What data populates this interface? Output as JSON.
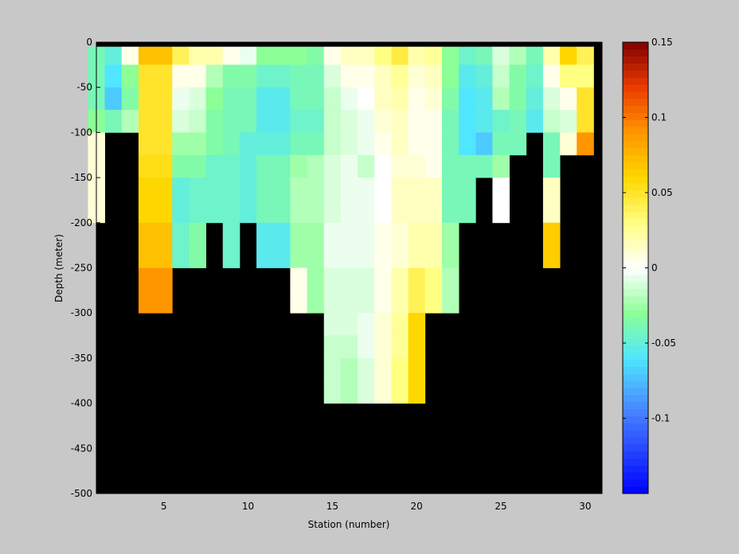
{
  "figure": {
    "background": "#c8c8c8"
  },
  "chart_data": {
    "type": "heatmap",
    "title": "",
    "xlabel": "Station (number)",
    "ylabel": "Depth (meter)",
    "xlim": [
      1,
      31
    ],
    "ylim": [
      -500,
      0
    ],
    "x_ticks": [
      5,
      10,
      15,
      20,
      25,
      30
    ],
    "x_tick_labels": [
      "5",
      "10",
      "15",
      "20",
      "25",
      "30"
    ],
    "y_ticks": [
      0,
      -50,
      -100,
      -150,
      -200,
      -250,
      -300,
      -350,
      -400,
      -450,
      -500
    ],
    "y_tick_labels": [
      "0",
      "-50",
      "-100",
      "-150",
      "-200",
      "-250",
      "-300",
      "-350",
      "-400",
      "-450",
      "-500"
    ],
    "colorbar": {
      "colormap": "jet-with-white-center",
      "clim": [
        -0.15,
        0.15
      ],
      "ticks": [
        0.15,
        0.1,
        0.05,
        0,
        -0.05,
        -0.1
      ],
      "tick_labels": [
        "0.15",
        "0.1",
        "0.05",
        "0",
        "-0.05",
        "-0.1"
      ]
    },
    "missing_color": "#000000",
    "stations": [
      1,
      2,
      3,
      4,
      5,
      6,
      7,
      8,
      9,
      10,
      11,
      12,
      13,
      14,
      15,
      16,
      17,
      18,
      19,
      20,
      21,
      22,
      23,
      24,
      25,
      26,
      27,
      28,
      29,
      30
    ],
    "depth_bins_top": [
      -5,
      -25,
      -50,
      -75,
      -100,
      -125,
      -150,
      -175,
      -200,
      -225,
      -250,
      -275,
      -300,
      -325,
      -350,
      -375
    ],
    "depth_bins_bottom": [
      -25,
      -50,
      -75,
      -100,
      -125,
      -150,
      -175,
      -200,
      -225,
      -250,
      -275,
      -300,
      -325,
      -350,
      -375,
      -400
    ],
    "values": [
      [
        -0.04,
        -0.05,
        0.005,
        0.07,
        0.07,
        0.04,
        0.02,
        0.02,
        0.005,
        -0.005,
        -0.03,
        -0.03,
        -0.03,
        -0.035,
        0.005,
        0.015,
        0.015,
        0.03,
        0.045,
        0.02,
        0.025,
        -0.03,
        -0.045,
        -0.04,
        -0.01,
        -0.02,
        -0.04,
        0.02,
        0.06,
        0.04
      ],
      [
        -0.04,
        -0.06,
        -0.03,
        0.05,
        0.05,
        0.005,
        0.005,
        -0.02,
        -0.035,
        -0.035,
        -0.045,
        -0.045,
        -0.04,
        -0.04,
        -0.01,
        0.005,
        0.005,
        0.015,
        0.025,
        0.01,
        0.015,
        -0.03,
        -0.055,
        -0.05,
        -0.015,
        -0.035,
        -0.045,
        0.005,
        0.03,
        0.03
      ],
      [
        -0.04,
        -0.07,
        -0.035,
        0.05,
        0.05,
        -0.005,
        -0.01,
        -0.03,
        -0.04,
        -0.04,
        -0.055,
        -0.055,
        -0.04,
        -0.04,
        -0.015,
        -0.005,
        0.0,
        0.015,
        0.02,
        0.005,
        0.01,
        -0.035,
        -0.06,
        -0.055,
        -0.02,
        -0.035,
        -0.05,
        -0.01,
        0.005,
        0.05
      ],
      [
        -0.03,
        -0.04,
        -0.02,
        0.05,
        0.05,
        -0.01,
        -0.015,
        -0.035,
        -0.04,
        -0.04,
        -0.055,
        -0.055,
        -0.045,
        -0.045,
        -0.015,
        -0.01,
        -0.005,
        0.01,
        0.015,
        0.005,
        0.005,
        -0.04,
        -0.06,
        -0.055,
        -0.045,
        -0.04,
        -0.055,
        -0.015,
        -0.01,
        0.05
      ],
      [
        0.01,
        null,
        null,
        0.05,
        0.05,
        -0.025,
        -0.025,
        -0.035,
        -0.04,
        -0.05,
        -0.05,
        -0.05,
        -0.04,
        -0.04,
        -0.015,
        -0.01,
        -0.005,
        0.005,
        0.015,
        0.005,
        0.005,
        -0.04,
        -0.06,
        -0.07,
        -0.04,
        -0.04,
        null,
        -0.04,
        0.01,
        0.09
      ],
      [
        0.01,
        null,
        null,
        0.055,
        0.055,
        -0.035,
        -0.035,
        -0.045,
        -0.045,
        -0.05,
        -0.04,
        -0.04,
        -0.025,
        -0.02,
        -0.01,
        -0.005,
        -0.015,
        0.0,
        0.01,
        0.01,
        0.005,
        -0.04,
        -0.04,
        -0.04,
        -0.025,
        null,
        null,
        -0.04,
        null,
        null
      ],
      [
        0.01,
        null,
        null,
        0.06,
        0.06,
        -0.05,
        -0.045,
        -0.045,
        -0.045,
        -0.05,
        -0.04,
        -0.04,
        -0.02,
        -0.02,
        -0.01,
        -0.005,
        -0.005,
        0.0,
        0.015,
        0.015,
        0.015,
        -0.04,
        -0.04,
        null,
        0.0,
        null,
        null,
        0.015,
        null,
        null
      ],
      [
        0.01,
        null,
        null,
        0.06,
        0.06,
        -0.05,
        -0.045,
        -0.045,
        -0.045,
        -0.05,
        -0.04,
        -0.04,
        -0.02,
        -0.02,
        -0.01,
        -0.005,
        -0.005,
        0.0,
        0.015,
        0.015,
        0.015,
        -0.04,
        -0.04,
        null,
        0.0,
        null,
        null,
        0.015,
        null,
        null
      ],
      [
        null,
        null,
        null,
        0.07,
        0.07,
        -0.045,
        -0.035,
        null,
        -0.045,
        null,
        -0.055,
        -0.055,
        -0.025,
        -0.025,
        -0.005,
        -0.005,
        -0.005,
        0.005,
        0.01,
        0.02,
        0.02,
        -0.025,
        null,
        null,
        null,
        null,
        null,
        0.065,
        null,
        null
      ],
      [
        null,
        null,
        null,
        0.07,
        0.07,
        -0.045,
        -0.035,
        null,
        -0.045,
        null,
        -0.055,
        -0.055,
        -0.025,
        -0.025,
        -0.005,
        -0.005,
        -0.005,
        0.005,
        0.01,
        0.02,
        0.02,
        -0.025,
        null,
        null,
        null,
        null,
        null,
        0.065,
        null,
        null
      ],
      [
        null,
        null,
        null,
        0.09,
        0.09,
        null,
        null,
        null,
        null,
        null,
        null,
        null,
        0.005,
        -0.025,
        -0.01,
        -0.01,
        -0.01,
        0.005,
        0.02,
        0.04,
        0.03,
        -0.02,
        null,
        null,
        null,
        null,
        null,
        null,
        null,
        null
      ],
      [
        null,
        null,
        null,
        0.09,
        0.09,
        null,
        null,
        null,
        null,
        null,
        null,
        null,
        0.005,
        -0.025,
        -0.01,
        -0.01,
        -0.01,
        0.005,
        0.02,
        0.04,
        0.03,
        -0.02,
        null,
        null,
        null,
        null,
        null,
        null,
        null,
        null
      ],
      [
        null,
        null,
        null,
        null,
        null,
        null,
        null,
        null,
        null,
        null,
        null,
        null,
        null,
        null,
        -0.01,
        -0.01,
        -0.005,
        0.01,
        0.025,
        0.06,
        null,
        null,
        null,
        null,
        null,
        null,
        null,
        null,
        null,
        null
      ],
      [
        null,
        null,
        null,
        null,
        null,
        null,
        null,
        null,
        null,
        null,
        null,
        null,
        null,
        null,
        -0.015,
        -0.015,
        -0.005,
        0.01,
        0.025,
        0.06,
        null,
        null,
        null,
        null,
        null,
        null,
        null,
        null,
        null,
        null
      ],
      [
        null,
        null,
        null,
        null,
        null,
        null,
        null,
        null,
        null,
        null,
        null,
        null,
        null,
        null,
        -0.015,
        -0.02,
        -0.01,
        0.01,
        0.03,
        0.06,
        null,
        null,
        null,
        null,
        null,
        null,
        null,
        null,
        null,
        null
      ],
      [
        null,
        null,
        null,
        null,
        null,
        null,
        null,
        null,
        null,
        null,
        null,
        null,
        null,
        null,
        -0.015,
        -0.02,
        -0.01,
        0.01,
        0.03,
        0.06,
        null,
        null,
        null,
        null,
        null,
        null,
        null,
        null,
        null,
        null
      ]
    ]
  }
}
